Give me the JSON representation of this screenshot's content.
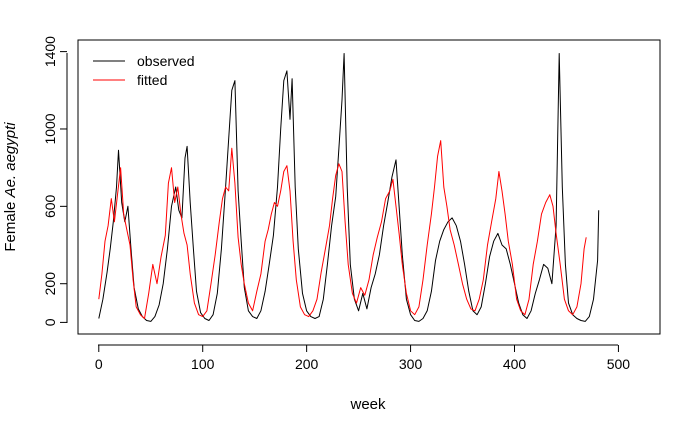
{
  "chart_data": {
    "type": "line",
    "title": "",
    "xlabel": "week",
    "ylabel_plain": "Female ",
    "ylabel_italic": "Ae. aegypti",
    "xlim": [
      -20,
      540
    ],
    "ylim": [
      -60,
      1460
    ],
    "x_ticks": [
      0,
      100,
      200,
      300,
      400,
      500
    ],
    "y_ticks": [
      0,
      200,
      600,
      1000,
      1400
    ],
    "x_tick_labels": [
      "0",
      "100",
      "200",
      "300",
      "400",
      "500"
    ],
    "y_tick_labels": [
      "0",
      "200",
      "600",
      "1000",
      "1400"
    ],
    "grid": false,
    "legend": {
      "position": "top-left"
    },
    "series": [
      {
        "name": "observed",
        "color": "#000000",
        "points": [
          [
            0,
            20
          ],
          [
            4,
            120
          ],
          [
            8,
            260
          ],
          [
            11,
            380
          ],
          [
            14,
            520
          ],
          [
            17,
            700
          ],
          [
            19,
            890
          ],
          [
            22,
            620
          ],
          [
            25,
            520
          ],
          [
            28,
            600
          ],
          [
            31,
            380
          ],
          [
            34,
            180
          ],
          [
            38,
            70
          ],
          [
            42,
            30
          ],
          [
            46,
            10
          ],
          [
            50,
            5
          ],
          [
            54,
            30
          ],
          [
            58,
            90
          ],
          [
            62,
            200
          ],
          [
            66,
            380
          ],
          [
            70,
            600
          ],
          [
            74,
            700
          ],
          [
            77,
            580
          ],
          [
            80,
            540
          ],
          [
            83,
            850
          ],
          [
            85,
            910
          ],
          [
            88,
            620
          ],
          [
            91,
            380
          ],
          [
            94,
            160
          ],
          [
            98,
            50
          ],
          [
            102,
            20
          ],
          [
            106,
            10
          ],
          [
            110,
            40
          ],
          [
            114,
            150
          ],
          [
            118,
            380
          ],
          [
            122,
            700
          ],
          [
            125,
            950
          ],
          [
            128,
            1200
          ],
          [
            131,
            1250
          ],
          [
            134,
            680
          ],
          [
            137,
            420
          ],
          [
            140,
            180
          ],
          [
            144,
            60
          ],
          [
            148,
            30
          ],
          [
            152,
            20
          ],
          [
            156,
            60
          ],
          [
            160,
            160
          ],
          [
            164,
            300
          ],
          [
            168,
            450
          ],
          [
            172,
            700
          ],
          [
            175,
            1000
          ],
          [
            178,
            1250
          ],
          [
            181,
            1300
          ],
          [
            184,
            1050
          ],
          [
            186,
            1260
          ],
          [
            189,
            700
          ],
          [
            192,
            380
          ],
          [
            196,
            150
          ],
          [
            200,
            60
          ],
          [
            204,
            30
          ],
          [
            208,
            20
          ],
          [
            212,
            30
          ],
          [
            216,
            120
          ],
          [
            220,
            300
          ],
          [
            224,
            500
          ],
          [
            228,
            650
          ],
          [
            231,
            900
          ],
          [
            234,
            1150
          ],
          [
            236,
            1390
          ],
          [
            239,
            700
          ],
          [
            242,
            300
          ],
          [
            246,
            120
          ],
          [
            250,
            60
          ],
          [
            254,
            150
          ],
          [
            258,
            70
          ],
          [
            262,
            180
          ],
          [
            266,
            250
          ],
          [
            270,
            350
          ],
          [
            274,
            500
          ],
          [
            278,
            620
          ],
          [
            282,
            750
          ],
          [
            286,
            840
          ],
          [
            289,
            600
          ],
          [
            292,
            350
          ],
          [
            296,
            120
          ],
          [
            300,
            40
          ],
          [
            304,
            10
          ],
          [
            308,
            5
          ],
          [
            312,
            20
          ],
          [
            316,
            60
          ],
          [
            320,
            160
          ],
          [
            324,
            320
          ],
          [
            328,
            420
          ],
          [
            332,
            480
          ],
          [
            336,
            520
          ],
          [
            340,
            540
          ],
          [
            344,
            500
          ],
          [
            348,
            420
          ],
          [
            352,
            300
          ],
          [
            356,
            160
          ],
          [
            360,
            60
          ],
          [
            364,
            40
          ],
          [
            368,
            80
          ],
          [
            372,
            200
          ],
          [
            376,
            340
          ],
          [
            380,
            420
          ],
          [
            384,
            460
          ],
          [
            388,
            400
          ],
          [
            392,
            380
          ],
          [
            396,
            300
          ],
          [
            400,
            200
          ],
          [
            404,
            100
          ],
          [
            408,
            40
          ],
          [
            412,
            20
          ],
          [
            416,
            60
          ],
          [
            420,
            150
          ],
          [
            424,
            220
          ],
          [
            428,
            300
          ],
          [
            432,
            280
          ],
          [
            436,
            200
          ],
          [
            440,
            500
          ],
          [
            443,
            1390
          ],
          [
            446,
            700
          ],
          [
            449,
            300
          ],
          [
            452,
            100
          ],
          [
            456,
            40
          ],
          [
            460,
            20
          ],
          [
            464,
            10
          ],
          [
            468,
            5
          ],
          [
            472,
            30
          ],
          [
            476,
            120
          ],
          [
            480,
            320
          ],
          [
            481,
            580
          ]
        ]
      },
      {
        "name": "fitted",
        "color": "#ff0000",
        "points": [
          [
            0,
            120
          ],
          [
            3,
            250
          ],
          [
            6,
            420
          ],
          [
            9,
            500
          ],
          [
            12,
            640
          ],
          [
            15,
            520
          ],
          [
            18,
            660
          ],
          [
            21,
            800
          ],
          [
            24,
            560
          ],
          [
            27,
            480
          ],
          [
            30,
            400
          ],
          [
            33,
            220
          ],
          [
            36,
            80
          ],
          [
            40,
            40
          ],
          [
            44,
            20
          ],
          [
            48,
            150
          ],
          [
            52,
            300
          ],
          [
            56,
            200
          ],
          [
            60,
            340
          ],
          [
            64,
            450
          ],
          [
            67,
            720
          ],
          [
            70,
            800
          ],
          [
            73,
            620
          ],
          [
            76,
            700
          ],
          [
            79,
            560
          ],
          [
            82,
            460
          ],
          [
            85,
            400
          ],
          [
            88,
            250
          ],
          [
            92,
            100
          ],
          [
            96,
            40
          ],
          [
            100,
            30
          ],
          [
            104,
            60
          ],
          [
            108,
            200
          ],
          [
            112,
            350
          ],
          [
            116,
            520
          ],
          [
            119,
            640
          ],
          [
            122,
            700
          ],
          [
            125,
            680
          ],
          [
            128,
            900
          ],
          [
            131,
            720
          ],
          [
            134,
            440
          ],
          [
            137,
            300
          ],
          [
            140,
            200
          ],
          [
            144,
            100
          ],
          [
            148,
            60
          ],
          [
            152,
            160
          ],
          [
            156,
            250
          ],
          [
            160,
            420
          ],
          [
            163,
            480
          ],
          [
            166,
            560
          ],
          [
            169,
            620
          ],
          [
            172,
            600
          ],
          [
            175,
            680
          ],
          [
            178,
            780
          ],
          [
            181,
            810
          ],
          [
            184,
            680
          ],
          [
            187,
            420
          ],
          [
            190,
            220
          ],
          [
            194,
            80
          ],
          [
            198,
            40
          ],
          [
            202,
            30
          ],
          [
            206,
            60
          ],
          [
            210,
            120
          ],
          [
            214,
            260
          ],
          [
            218,
            380
          ],
          [
            222,
            500
          ],
          [
            225,
            640
          ],
          [
            228,
            760
          ],
          [
            231,
            820
          ],
          [
            234,
            780
          ],
          [
            237,
            520
          ],
          [
            240,
            300
          ],
          [
            244,
            150
          ],
          [
            248,
            100
          ],
          [
            252,
            180
          ],
          [
            256,
            140
          ],
          [
            260,
            220
          ],
          [
            264,
            350
          ],
          [
            268,
            440
          ],
          [
            272,
            520
          ],
          [
            276,
            640
          ],
          [
            280,
            680
          ],
          [
            283,
            740
          ],
          [
            286,
            600
          ],
          [
            289,
            460
          ],
          [
            292,
            300
          ],
          [
            296,
            150
          ],
          [
            300,
            60
          ],
          [
            304,
            40
          ],
          [
            308,
            80
          ],
          [
            312,
            220
          ],
          [
            316,
            400
          ],
          [
            320,
            560
          ],
          [
            323,
            700
          ],
          [
            326,
            860
          ],
          [
            329,
            940
          ],
          [
            332,
            700
          ],
          [
            335,
            600
          ],
          [
            338,
            480
          ],
          [
            342,
            400
          ],
          [
            346,
            300
          ],
          [
            350,
            200
          ],
          [
            354,
            120
          ],
          [
            358,
            70
          ],
          [
            362,
            60
          ],
          [
            366,
            120
          ],
          [
            370,
            220
          ],
          [
            374,
            400
          ],
          [
            378,
            520
          ],
          [
            382,
            640
          ],
          [
            385,
            780
          ],
          [
            388,
            680
          ],
          [
            391,
            560
          ],
          [
            394,
            420
          ],
          [
            398,
            300
          ],
          [
            402,
            120
          ],
          [
            406,
            60
          ],
          [
            410,
            40
          ],
          [
            414,
            120
          ],
          [
            418,
            300
          ],
          [
            422,
            420
          ],
          [
            426,
            560
          ],
          [
            430,
            620
          ],
          [
            434,
            660
          ],
          [
            437,
            600
          ],
          [
            440,
            460
          ],
          [
            444,
            300
          ],
          [
            448,
            120
          ],
          [
            452,
            60
          ],
          [
            456,
            40
          ],
          [
            460,
            80
          ],
          [
            464,
            200
          ],
          [
            467,
            380
          ],
          [
            469,
            440
          ]
        ]
      }
    ]
  }
}
